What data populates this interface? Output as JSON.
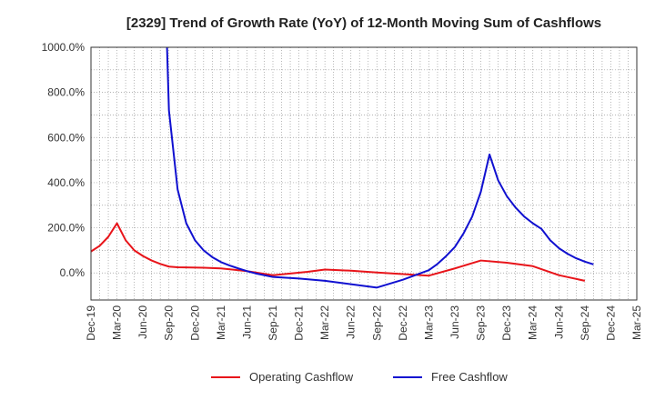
{
  "chart_data": {
    "type": "line",
    "title": "[2329]  Trend of Growth Rate (YoY) of 12-Month Moving Sum of Cashflows",
    "xlabel": "",
    "ylabel": "",
    "ylim": [
      -120,
      1000
    ],
    "y_ticks": [
      "1000.0%",
      "800.0%",
      "600.0%",
      "400.0%",
      "200.0%",
      "0.0%"
    ],
    "y_tick_values": [
      1000,
      800,
      600,
      400,
      200,
      0
    ],
    "x_tick_labels": [
      "Dec-19",
      "Mar-20",
      "Jun-20",
      "Sep-20",
      "Dec-20",
      "Mar-21",
      "Jun-21",
      "Sep-21",
      "Dec-21",
      "Mar-22",
      "Jun-22",
      "Sep-22",
      "Dec-22",
      "Mar-23",
      "Jun-23",
      "Sep-23",
      "Dec-23",
      "Mar-24",
      "Jun-24",
      "Sep-24",
      "Dec-24",
      "Mar-25"
    ],
    "x_range_months": [
      0,
      63
    ],
    "grid": true,
    "legend_position": "bottom",
    "series": [
      {
        "name": "Operating Cashflow",
        "color": "#e8141a",
        "points": [
          [
            0,
            95
          ],
          [
            1,
            120
          ],
          [
            2,
            160
          ],
          [
            3,
            220
          ],
          [
            4,
            145
          ],
          [
            5,
            100
          ],
          [
            6,
            75
          ],
          [
            7,
            55
          ],
          [
            8,
            40
          ],
          [
            9,
            28
          ],
          [
            10,
            25
          ],
          [
            13,
            23
          ],
          [
            15,
            20
          ],
          [
            18,
            8
          ],
          [
            21,
            -10
          ],
          [
            25,
            5
          ],
          [
            27,
            15
          ],
          [
            30,
            10
          ],
          [
            33,
            2
          ],
          [
            36,
            -5
          ],
          [
            39,
            -12
          ],
          [
            42,
            20
          ],
          [
            45,
            55
          ],
          [
            48,
            45
          ],
          [
            51,
            30
          ],
          [
            54,
            -10
          ],
          [
            57,
            -35
          ]
        ]
      },
      {
        "name": "Free Cashflow",
        "color": "#1010d0",
        "points": [
          [
            8.7,
            1100
          ],
          [
            9,
            720
          ],
          [
            10,
            370
          ],
          [
            11,
            220
          ],
          [
            12,
            145
          ],
          [
            13,
            100
          ],
          [
            14,
            70
          ],
          [
            15,
            48
          ],
          [
            16,
            33
          ],
          [
            17,
            20
          ],
          [
            18,
            8
          ],
          [
            19,
            -2
          ],
          [
            21,
            -18
          ],
          [
            24,
            -25
          ],
          [
            27,
            -35
          ],
          [
            30,
            -50
          ],
          [
            33,
            -65
          ],
          [
            36,
            -30
          ],
          [
            39,
            12
          ],
          [
            40,
            40
          ],
          [
            41,
            75
          ],
          [
            42,
            115
          ],
          [
            43,
            175
          ],
          [
            44,
            250
          ],
          [
            45,
            360
          ],
          [
            46,
            525
          ],
          [
            47,
            410
          ],
          [
            48,
            340
          ],
          [
            49,
            290
          ],
          [
            50,
            250
          ],
          [
            51,
            220
          ],
          [
            52,
            195
          ],
          [
            53,
            145
          ],
          [
            54,
            110
          ],
          [
            55,
            85
          ],
          [
            56,
            65
          ],
          [
            57,
            50
          ],
          [
            58,
            38
          ]
        ]
      }
    ]
  }
}
